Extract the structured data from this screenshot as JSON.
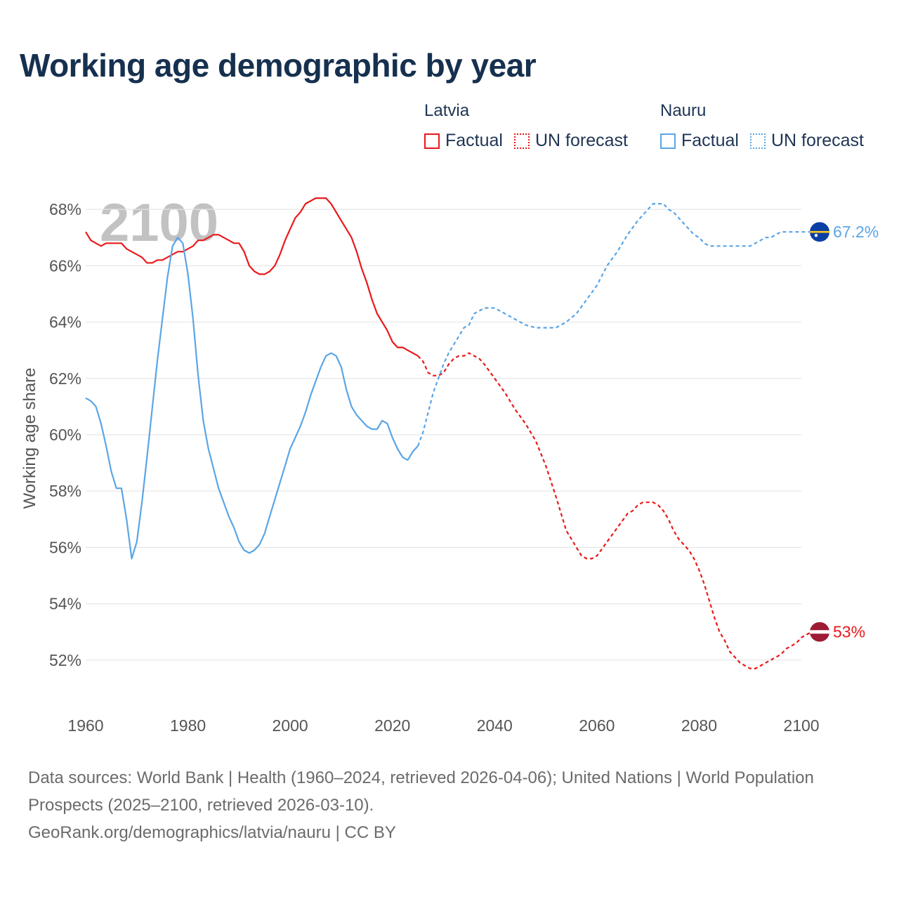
{
  "title": "Working age demographic by year",
  "legend": {
    "groups": [
      {
        "country": "Latvia",
        "factual_label": "Factual",
        "forecast_label": "UN forecast",
        "color": "#e8191a"
      },
      {
        "country": "Nauru",
        "factual_label": "Factual",
        "forecast_label": "UN forecast",
        "color": "#5aa5e6"
      }
    ]
  },
  "footer": {
    "sources": "Data sources: World Bank | Health (1960–2024, retrieved 2026-04-06); United Nations | World Population Prospects (2025–2100, retrieved 2026-03-10).",
    "credit": "GeoRank.org/demographics/latvia/nauru | CC BY"
  },
  "chart_data": {
    "type": "line",
    "title": "Working age demographic by year",
    "year_watermark": "2100",
    "xlabel": "",
    "ylabel": "Working age share",
    "xlim": [
      1960,
      2100
    ],
    "ylim": [
      50.4,
      69.2
    ],
    "x_ticks": [
      1960,
      1980,
      2000,
      2020,
      2040,
      2060,
      2080,
      2100
    ],
    "x_tick_labels": [
      "1960",
      "1980",
      "2000",
      "2020",
      "2040",
      "2060",
      "2080",
      "2100"
    ],
    "y_ticks": [
      52,
      54,
      56,
      58,
      60,
      62,
      64,
      66,
      68
    ],
    "y_tick_labels": [
      "52%",
      "54%",
      "56%",
      "58%",
      "60%",
      "62%",
      "64%",
      "66%",
      "68%"
    ],
    "grid": true,
    "forecast_start": 2025,
    "series": [
      {
        "name": "Latvia",
        "color": "#e8191a",
        "end_label": "53%",
        "flag": "latvia-flag",
        "points": [
          [
            1960,
            67.2
          ],
          [
            1961,
            66.9
          ],
          [
            1962,
            66.8
          ],
          [
            1963,
            66.7
          ],
          [
            1964,
            66.8
          ],
          [
            1965,
            66.8
          ],
          [
            1966,
            66.8
          ],
          [
            1967,
            66.8
          ],
          [
            1968,
            66.6
          ],
          [
            1969,
            66.5
          ],
          [
            1970,
            66.4
          ],
          [
            1971,
            66.3
          ],
          [
            1972,
            66.1
          ],
          [
            1973,
            66.1
          ],
          [
            1974,
            66.2
          ],
          [
            1975,
            66.2
          ],
          [
            1976,
            66.3
          ],
          [
            1977,
            66.4
          ],
          [
            1978,
            66.5
          ],
          [
            1979,
            66.5
          ],
          [
            1980,
            66.6
          ],
          [
            1981,
            66.7
          ],
          [
            1982,
            66.9
          ],
          [
            1983,
            66.9
          ],
          [
            1984,
            67.0
          ],
          [
            1985,
            67.1
          ],
          [
            1986,
            67.1
          ],
          [
            1987,
            67.0
          ],
          [
            1988,
            66.9
          ],
          [
            1989,
            66.8
          ],
          [
            1990,
            66.8
          ],
          [
            1991,
            66.5
          ],
          [
            1992,
            66.0
          ],
          [
            1993,
            65.8
          ],
          [
            1994,
            65.7
          ],
          [
            1995,
            65.7
          ],
          [
            1996,
            65.8
          ],
          [
            1997,
            66.0
          ],
          [
            1998,
            66.4
          ],
          [
            1999,
            66.9
          ],
          [
            2000,
            67.3
          ],
          [
            2001,
            67.7
          ],
          [
            2002,
            67.9
          ],
          [
            2003,
            68.2
          ],
          [
            2004,
            68.3
          ],
          [
            2005,
            68.4
          ],
          [
            2006,
            68.4
          ],
          [
            2007,
            68.4
          ],
          [
            2008,
            68.2
          ],
          [
            2009,
            67.9
          ],
          [
            2010,
            67.6
          ],
          [
            2011,
            67.3
          ],
          [
            2012,
            67.0
          ],
          [
            2013,
            66.5
          ],
          [
            2014,
            65.9
          ],
          [
            2015,
            65.4
          ],
          [
            2016,
            64.8
          ],
          [
            2017,
            64.3
          ],
          [
            2018,
            64.0
          ],
          [
            2019,
            63.7
          ],
          [
            2020,
            63.3
          ],
          [
            2021,
            63.1
          ],
          [
            2022,
            63.1
          ],
          [
            2023,
            63.0
          ],
          [
            2024,
            62.9
          ],
          [
            2025,
            62.8
          ],
          [
            2026,
            62.6
          ],
          [
            2027,
            62.2
          ],
          [
            2028,
            62.1
          ],
          [
            2029,
            62.1
          ],
          [
            2030,
            62.2
          ],
          [
            2031,
            62.5
          ],
          [
            2032,
            62.7
          ],
          [
            2033,
            62.8
          ],
          [
            2034,
            62.8
          ],
          [
            2035,
            62.9
          ],
          [
            2036,
            62.8
          ],
          [
            2037,
            62.7
          ],
          [
            2038,
            62.5
          ],
          [
            2040,
            62.0
          ],
          [
            2042,
            61.5
          ],
          [
            2044,
            60.9
          ],
          [
            2046,
            60.4
          ],
          [
            2048,
            59.8
          ],
          [
            2050,
            58.9
          ],
          [
            2052,
            57.8
          ],
          [
            2054,
            56.6
          ],
          [
            2056,
            56.0
          ],
          [
            2057,
            55.7
          ],
          [
            2058,
            55.6
          ],
          [
            2059,
            55.6
          ],
          [
            2060,
            55.7
          ],
          [
            2062,
            56.2
          ],
          [
            2064,
            56.7
          ],
          [
            2066,
            57.2
          ],
          [
            2067,
            57.3
          ],
          [
            2068,
            57.5
          ],
          [
            2069,
            57.6
          ],
          [
            2070,
            57.6
          ],
          [
            2071,
            57.6
          ],
          [
            2072,
            57.5
          ],
          [
            2073,
            57.3
          ],
          [
            2074,
            57.0
          ],
          [
            2075,
            56.6
          ],
          [
            2076,
            56.3
          ],
          [
            2077,
            56.1
          ],
          [
            2078,
            55.9
          ],
          [
            2079,
            55.6
          ],
          [
            2080,
            55.2
          ],
          [
            2081,
            54.7
          ],
          [
            2082,
            54.1
          ],
          [
            2083,
            53.5
          ],
          [
            2084,
            53.0
          ],
          [
            2085,
            52.7
          ],
          [
            2086,
            52.3
          ],
          [
            2087,
            52.1
          ],
          [
            2088,
            51.9
          ],
          [
            2089,
            51.8
          ],
          [
            2090,
            51.7
          ],
          [
            2091,
            51.7
          ],
          [
            2092,
            51.8
          ],
          [
            2093,
            51.9
          ],
          [
            2094,
            52.0
          ],
          [
            2095,
            52.1
          ],
          [
            2096,
            52.2
          ],
          [
            2097,
            52.4
          ],
          [
            2098,
            52.5
          ],
          [
            2099,
            52.6
          ],
          [
            2100,
            52.8
          ],
          [
            2101,
            52.9
          ],
          [
            2102,
            53.0
          ],
          [
            2103,
            53.0
          ]
        ]
      },
      {
        "name": "Nauru",
        "color": "#5aa5e6",
        "end_label": "67.2%",
        "flag": "nauru-flag",
        "points": [
          [
            1960,
            61.3
          ],
          [
            1961,
            61.2
          ],
          [
            1962,
            61.0
          ],
          [
            1963,
            60.4
          ],
          [
            1964,
            59.6
          ],
          [
            1965,
            58.7
          ],
          [
            1966,
            58.1
          ],
          [
            1967,
            58.1
          ],
          [
            1968,
            57.0
          ],
          [
            1969,
            55.6
          ],
          [
            1970,
            56.2
          ],
          [
            1971,
            57.6
          ],
          [
            1972,
            59.2
          ],
          [
            1973,
            60.9
          ],
          [
            1974,
            62.6
          ],
          [
            1975,
            64.1
          ],
          [
            1976,
            65.6
          ],
          [
            1977,
            66.7
          ],
          [
            1978,
            67.0
          ],
          [
            1979,
            66.8
          ],
          [
            1980,
            65.7
          ],
          [
            1981,
            64.1
          ],
          [
            1982,
            62.1
          ],
          [
            1983,
            60.5
          ],
          [
            1984,
            59.5
          ],
          [
            1985,
            58.8
          ],
          [
            1986,
            58.1
          ],
          [
            1987,
            57.6
          ],
          [
            1988,
            57.1
          ],
          [
            1989,
            56.7
          ],
          [
            1990,
            56.2
          ],
          [
            1991,
            55.9
          ],
          [
            1992,
            55.8
          ],
          [
            1993,
            55.9
          ],
          [
            1994,
            56.1
          ],
          [
            1995,
            56.5
          ],
          [
            1996,
            57.1
          ],
          [
            1997,
            57.7
          ],
          [
            1998,
            58.3
          ],
          [
            1999,
            58.9
          ],
          [
            2000,
            59.5
          ],
          [
            2001,
            59.9
          ],
          [
            2002,
            60.3
          ],
          [
            2003,
            60.8
          ],
          [
            2004,
            61.4
          ],
          [
            2005,
            61.9
          ],
          [
            2006,
            62.4
          ],
          [
            2007,
            62.8
          ],
          [
            2008,
            62.9
          ],
          [
            2009,
            62.8
          ],
          [
            2010,
            62.4
          ],
          [
            2011,
            61.6
          ],
          [
            2012,
            61.0
          ],
          [
            2013,
            60.7
          ],
          [
            2014,
            60.5
          ],
          [
            2015,
            60.3
          ],
          [
            2016,
            60.2
          ],
          [
            2017,
            60.2
          ],
          [
            2018,
            60.5
          ],
          [
            2019,
            60.4
          ],
          [
            2020,
            59.9
          ],
          [
            2021,
            59.5
          ],
          [
            2022,
            59.2
          ],
          [
            2023,
            59.1
          ],
          [
            2024,
            59.4
          ],
          [
            2025,
            59.6
          ],
          [
            2026,
            60.1
          ],
          [
            2027,
            60.8
          ],
          [
            2028,
            61.5
          ],
          [
            2029,
            62.0
          ],
          [
            2030,
            62.5
          ],
          [
            2031,
            62.9
          ],
          [
            2032,
            63.2
          ],
          [
            2033,
            63.5
          ],
          [
            2034,
            63.8
          ],
          [
            2035,
            63.9
          ],
          [
            2036,
            64.3
          ],
          [
            2037,
            64.4
          ],
          [
            2038,
            64.5
          ],
          [
            2039,
            64.5
          ],
          [
            2040,
            64.5
          ],
          [
            2041,
            64.4
          ],
          [
            2042,
            64.3
          ],
          [
            2044,
            64.1
          ],
          [
            2046,
            63.9
          ],
          [
            2048,
            63.8
          ],
          [
            2050,
            63.8
          ],
          [
            2052,
            63.8
          ],
          [
            2054,
            64.0
          ],
          [
            2056,
            64.3
          ],
          [
            2058,
            64.8
          ],
          [
            2060,
            65.3
          ],
          [
            2062,
            66.0
          ],
          [
            2064,
            66.5
          ],
          [
            2066,
            67.1
          ],
          [
            2068,
            67.6
          ],
          [
            2069,
            67.8
          ],
          [
            2070,
            68.0
          ],
          [
            2071,
            68.2
          ],
          [
            2072,
            68.2
          ],
          [
            2073,
            68.2
          ],
          [
            2074,
            68.0
          ],
          [
            2075,
            67.9
          ],
          [
            2076,
            67.7
          ],
          [
            2077,
            67.5
          ],
          [
            2078,
            67.3
          ],
          [
            2079,
            67.1
          ],
          [
            2080,
            67.0
          ],
          [
            2081,
            66.8
          ],
          [
            2082,
            66.7
          ],
          [
            2084,
            66.7
          ],
          [
            2086,
            66.7
          ],
          [
            2088,
            66.7
          ],
          [
            2090,
            66.7
          ],
          [
            2091,
            66.8
          ],
          [
            2092,
            66.9
          ],
          [
            2093,
            67.0
          ],
          [
            2094,
            67.0
          ],
          [
            2095,
            67.1
          ],
          [
            2096,
            67.2
          ],
          [
            2098,
            67.2
          ],
          [
            2100,
            67.2
          ],
          [
            2102,
            67.2
          ],
          [
            2103,
            67.2
          ]
        ]
      }
    ]
  }
}
